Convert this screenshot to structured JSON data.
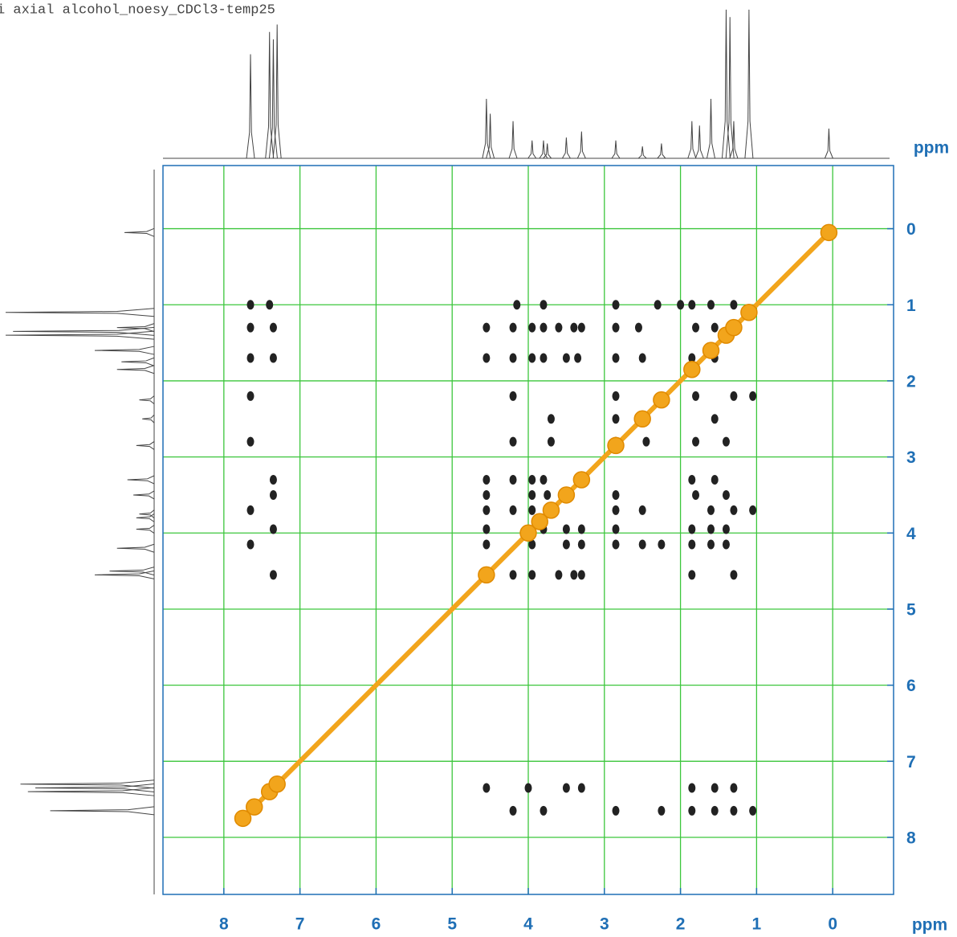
{
  "chart_data": {
    "type": "nmr2d",
    "title": "i axial alcohol_noesy_CDCl3-temp25",
    "x_label": "ppm",
    "y_label": "ppm",
    "xlim": [
      8.8,
      -0.8
    ],
    "ylim": [
      -0.83,
      8.75
    ],
    "xticks": [
      8,
      7,
      6,
      5,
      4,
      3,
      2,
      1,
      0
    ],
    "yticks": [
      0,
      1,
      2,
      3,
      4,
      5,
      6,
      7,
      8
    ],
    "grid": true,
    "grid_color": "#3cc63c",
    "axis_color": "#1f6fb5",
    "diagonal": true,
    "projection": {
      "color": "#444444",
      "x": [
        7.65,
        7.4,
        7.35,
        7.3,
        4.55,
        4.5,
        4.2,
        3.95,
        3.8,
        3.75,
        3.5,
        3.3,
        2.85,
        2.5,
        2.25,
        1.85,
        1.75,
        1.6,
        1.4,
        1.35,
        1.3,
        1.1,
        0.05
      ],
      "values": [
        70,
        85,
        80,
        90,
        40,
        30,
        25,
        12,
        12,
        10,
        14,
        18,
        12,
        8,
        10,
        25,
        22,
        40,
        100,
        95,
        25,
        100,
        20
      ]
    },
    "series": [
      {
        "color": "#f2a51c",
        "x": [
          7.75,
          7.6,
          7.4,
          7.3,
          4.55,
          4.0,
          3.85,
          3.7,
          3.5,
          3.3,
          2.85,
          2.5,
          2.25,
          1.85,
          1.6,
          1.4,
          1.3,
          1.1,
          0.05
        ],
        "y": [
          7.75,
          7.6,
          7.4,
          7.3,
          4.55,
          4.0,
          3.85,
          3.7,
          3.5,
          3.3,
          2.85,
          2.5,
          2.25,
          1.85,
          1.6,
          1.4,
          1.3,
          1.1,
          0.05
        ]
      },
      {
        "color": "#222222",
        "x": [
          7.65,
          7.4,
          4.15,
          3.8,
          2.85,
          2.3,
          2.0,
          1.85,
          1.6,
          1.3,
          7.65,
          7.35,
          4.55,
          4.2,
          3.95,
          3.8,
          3.6,
          3.4,
          3.3,
          2.85,
          2.55,
          1.8,
          1.55,
          7.65,
          7.35,
          4.55,
          4.2,
          3.95,
          3.8,
          3.5,
          3.35,
          2.85,
          2.5,
          1.85,
          1.55,
          7.65,
          4.2,
          2.85,
          1.8,
          1.3,
          1.05,
          3.7,
          2.85,
          1.55,
          7.65,
          4.2,
          3.7,
          2.85,
          2.45,
          1.8,
          1.4,
          7.35,
          4.55,
          4.2,
          3.95,
          3.8,
          1.85,
          1.55,
          7.35,
          4.55,
          3.95,
          3.75,
          2.85,
          1.8,
          1.4,
          7.65,
          4.55,
          4.2,
          3.95,
          2.85,
          2.5,
          1.6,
          1.3,
          1.05,
          7.35,
          4.55,
          3.8,
          3.5,
          3.3,
          2.85,
          1.85,
          1.6,
          1.4,
          7.65,
          4.55,
          3.95,
          3.5,
          3.3,
          2.85,
          2.5,
          2.25,
          1.85,
          1.6,
          1.4,
          7.35,
          4.2,
          3.95,
          3.6,
          3.4,
          3.3,
          1.85,
          1.3,
          4.55,
          4.0,
          3.5,
          3.3,
          1.85,
          1.55,
          1.3,
          4.2,
          3.8,
          2.85,
          2.25,
          1.85,
          1.55,
          1.3,
          1.05
        ],
        "y": [
          1.0,
          1.0,
          1.0,
          1.0,
          1.0,
          1.0,
          1.0,
          1.0,
          1.0,
          1.0,
          1.3,
          1.3,
          1.3,
          1.3,
          1.3,
          1.3,
          1.3,
          1.3,
          1.3,
          1.3,
          1.3,
          1.3,
          1.3,
          1.7,
          1.7,
          1.7,
          1.7,
          1.7,
          1.7,
          1.7,
          1.7,
          1.7,
          1.7,
          1.7,
          1.7,
          2.2,
          2.2,
          2.2,
          2.2,
          2.2,
          2.2,
          2.5,
          2.5,
          2.5,
          2.8,
          2.8,
          2.8,
          2.8,
          2.8,
          2.8,
          2.8,
          3.3,
          3.3,
          3.3,
          3.3,
          3.3,
          3.3,
          3.3,
          3.5,
          3.5,
          3.5,
          3.5,
          3.5,
          3.5,
          3.5,
          3.7,
          3.7,
          3.7,
          3.7,
          3.7,
          3.7,
          3.7,
          3.7,
          3.7,
          3.95,
          3.95,
          3.95,
          3.95,
          3.95,
          3.95,
          3.95,
          3.95,
          3.95,
          4.15,
          4.15,
          4.15,
          4.15,
          4.15,
          4.15,
          4.15,
          4.15,
          4.15,
          4.15,
          4.15,
          4.55,
          4.55,
          4.55,
          4.55,
          4.55,
          4.55,
          4.55,
          4.55,
          7.35,
          7.35,
          7.35,
          7.35,
          7.35,
          7.35,
          7.35,
          7.65,
          7.65,
          7.65,
          7.65,
          7.65,
          7.65,
          7.65,
          7.65
        ]
      }
    ]
  }
}
